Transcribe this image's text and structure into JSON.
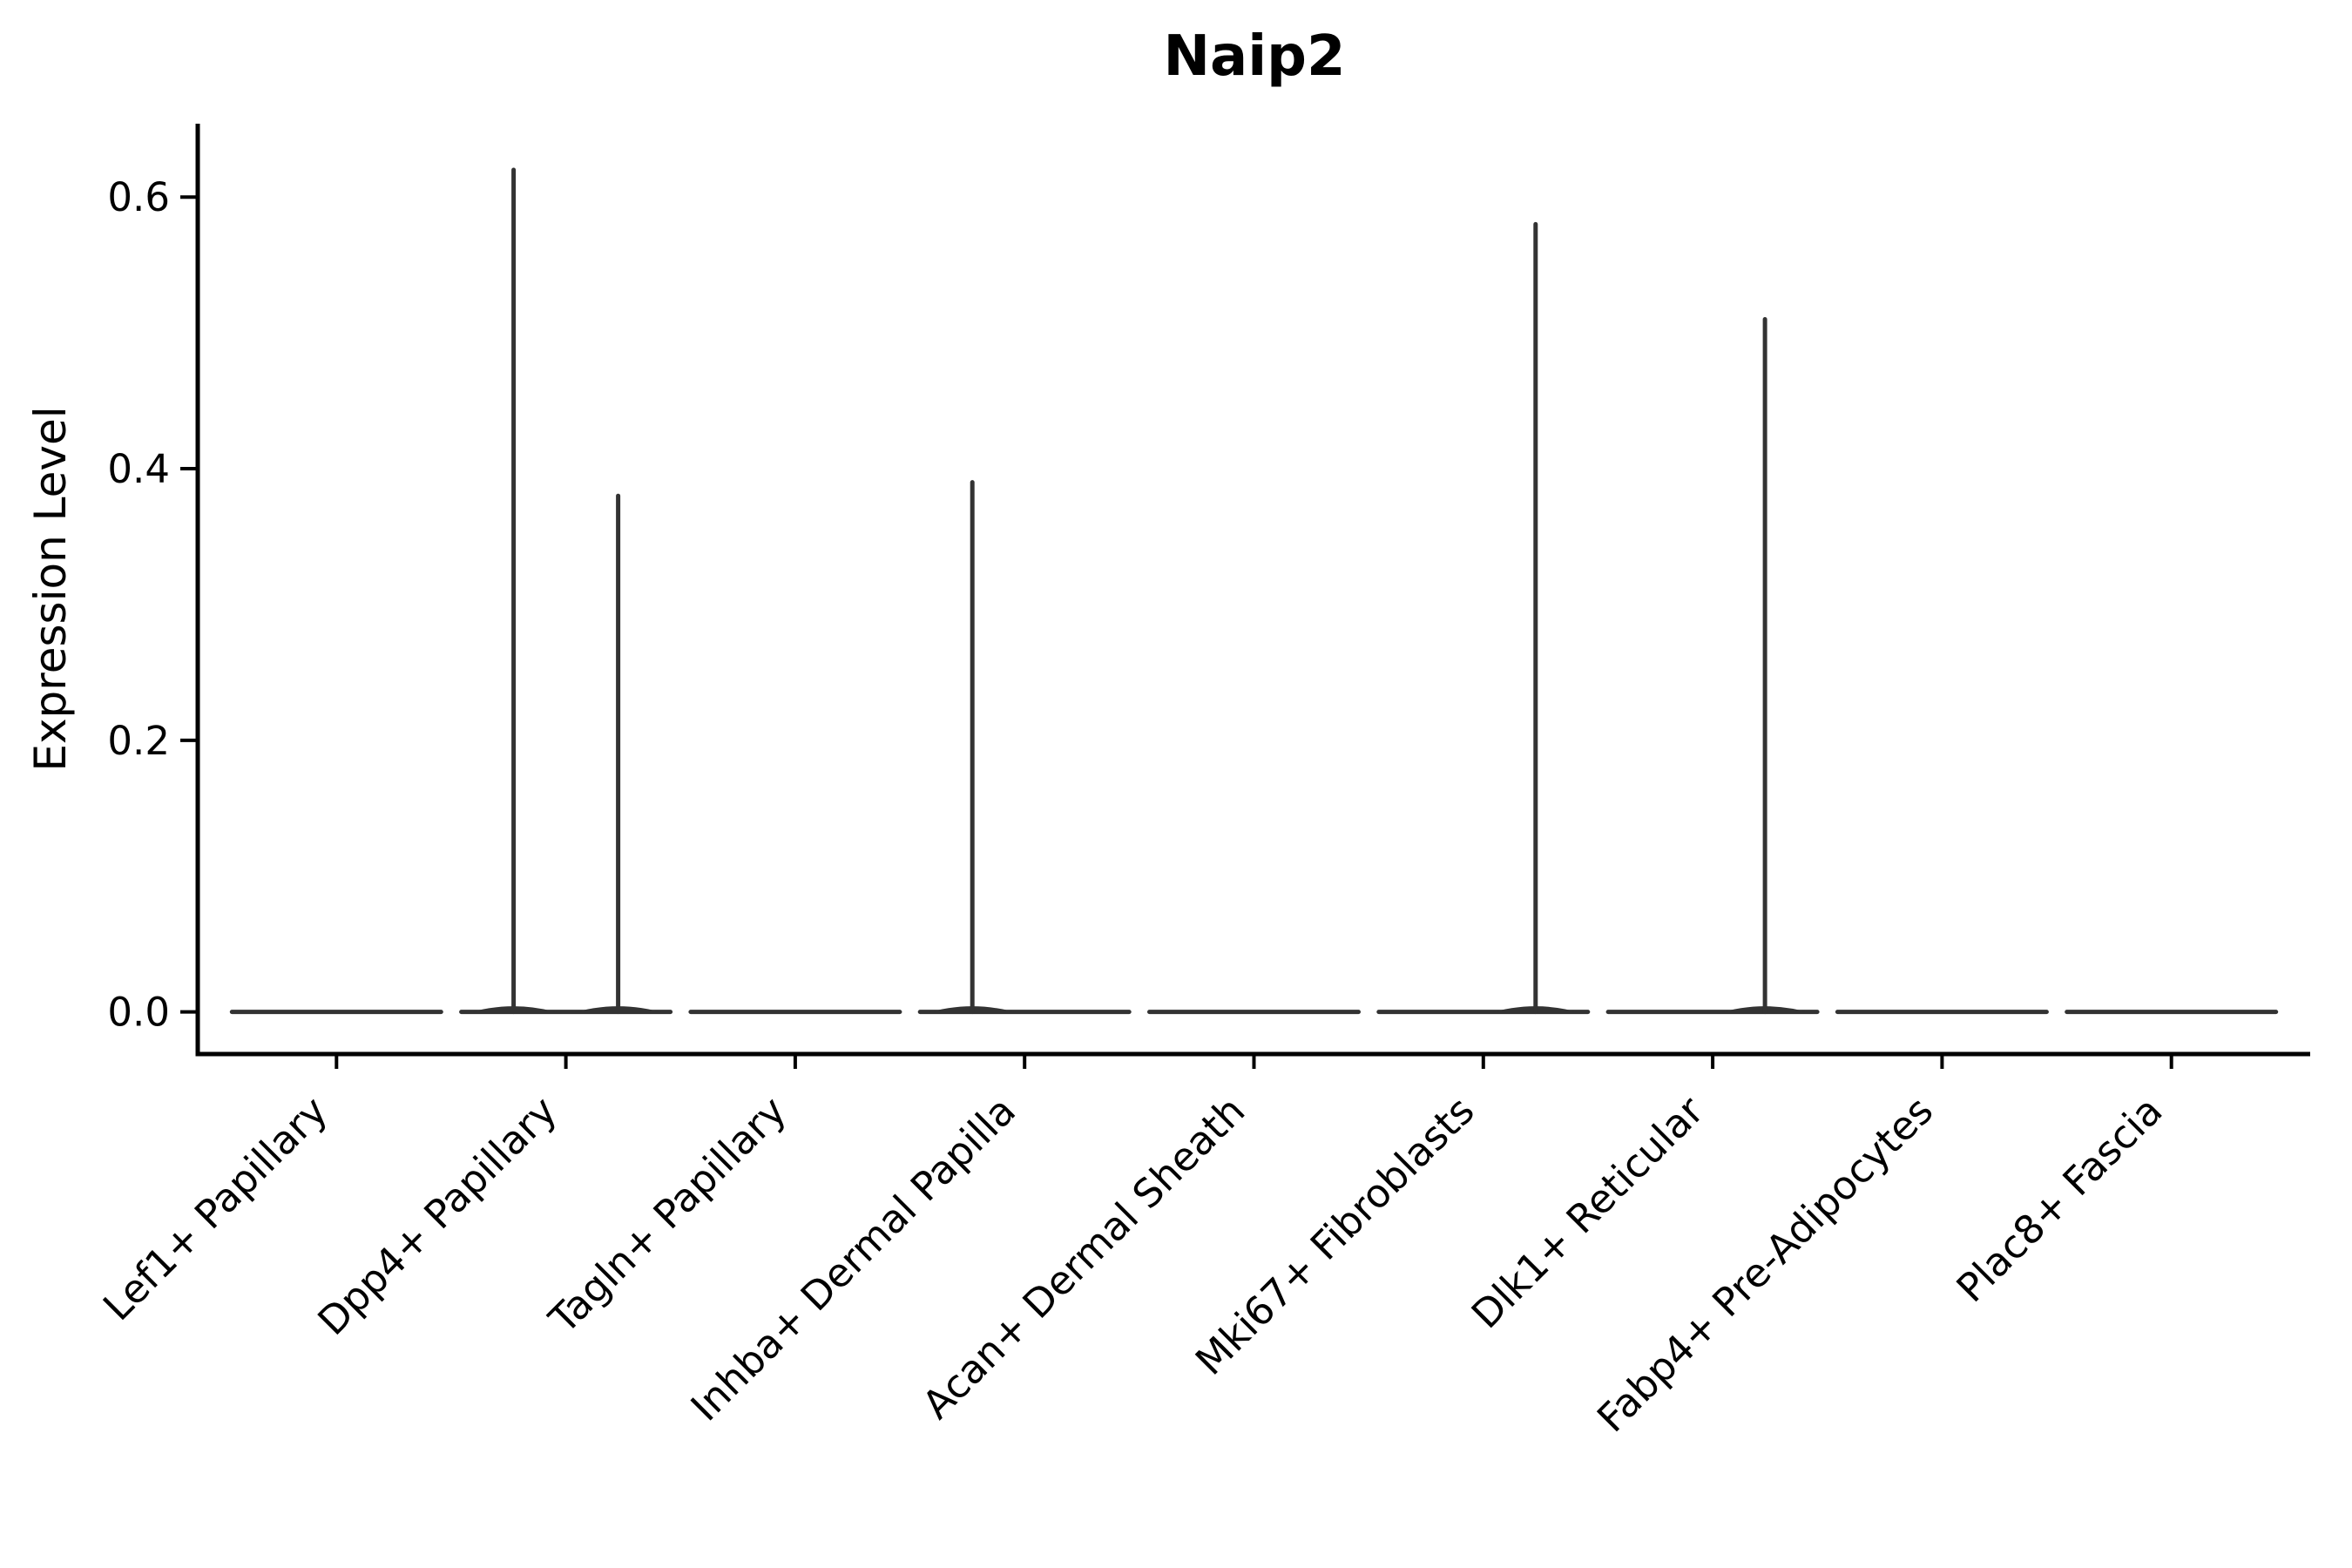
{
  "figure": {
    "title": "Naip2"
  },
  "axes": {
    "y_label": "Expression Level",
    "x_label": ""
  },
  "chart_data": {
    "type": "violin",
    "title": "Naip2",
    "xlabel": "",
    "ylabel": "Expression Level",
    "categories": [
      "Lef1+ Papillary",
      "Dpp4+ Papillary",
      "Tagln+ Papillary",
      "Inhba+ Dermal Papilla",
      "Acan+ Dermal Sheath",
      "Mki67+ Fibroblasts",
      "Dlk1+ Reticular",
      "Fabp4+ Pre-Adipocytes",
      "Plac8+ Fascia"
    ],
    "y_tick_labels": [
      "0.0",
      "0.2",
      "0.4",
      "0.6"
    ],
    "y_tick_values": [
      0.0,
      0.2,
      0.4,
      0.6
    ],
    "ylim": [
      -0.031,
      0.654
    ],
    "grid": false,
    "legend": "none",
    "violin_color": "#333333",
    "axis_color": "#000000",
    "baseline_value": 0.0,
    "violins": [
      {
        "category": "Lef1+ Papillary",
        "body": "flat-at-zero",
        "spikes": []
      },
      {
        "category": "Dpp4+ Papillary",
        "body": "flat-at-zero",
        "spikes": [
          {
            "position": "left",
            "value": 0.62
          },
          {
            "position": "right",
            "value": 0.38
          }
        ]
      },
      {
        "category": "Tagln+ Papillary",
        "body": "flat-at-zero",
        "spikes": []
      },
      {
        "category": "Inhba+ Dermal Papilla",
        "body": "flat-at-zero",
        "spikes": [
          {
            "position": "left",
            "value": 0.39
          }
        ]
      },
      {
        "category": "Acan+ Dermal Sheath",
        "body": "flat-at-zero",
        "spikes": []
      },
      {
        "category": "Mki67+ Fibroblasts",
        "body": "flat-at-zero",
        "spikes": [
          {
            "position": "right",
            "value": 0.58
          }
        ]
      },
      {
        "category": "Dlk1+ Reticular",
        "body": "flat-at-zero",
        "spikes": [
          {
            "position": "right",
            "value": 0.51
          }
        ]
      },
      {
        "category": "Fabp4+ Pre-Adipocytes",
        "body": "flat-at-zero",
        "spikes": []
      },
      {
        "category": "Plac8+ Fascia",
        "body": "flat-at-zero",
        "spikes": []
      }
    ]
  }
}
